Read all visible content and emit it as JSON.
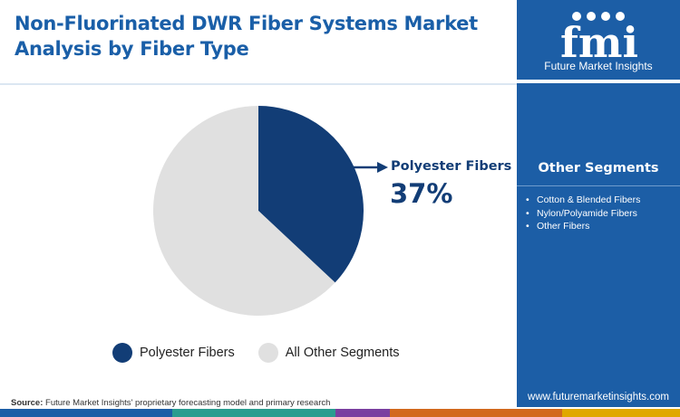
{
  "title": "Non-Fluorinated DWR Fiber Systems Market Analysis by Fiber Type",
  "brand": {
    "logo_text": "fmi",
    "tagline": "Future Market Insights",
    "website": "www.futuremarketinsights.com",
    "color_primary": "#1c5ea6"
  },
  "other_segments": {
    "heading": "Other Segments",
    "items": [
      "Cotton & Blended Fibers",
      "Nylon/Polyamide Fibers",
      "Other Fibers"
    ]
  },
  "callout": {
    "label": "Polyester Fibers",
    "value": "37%"
  },
  "chart_data": {
    "type": "pie",
    "series": [
      {
        "name": "Polyester Fibers",
        "value": 37,
        "color": "#123d76"
      },
      {
        "name": "All Other Segments",
        "value": 63,
        "color": "#e0e0e0"
      }
    ],
    "legend_position": "bottom"
  },
  "source": {
    "prefix": "Source:",
    "text": "Future Market Insights' proprietary forecasting model and primary research"
  },
  "footer_colors": [
    "#1c5ea6",
    "#2a9d8f",
    "#7a3fa0",
    "#d2691e",
    "#e0a800"
  ]
}
